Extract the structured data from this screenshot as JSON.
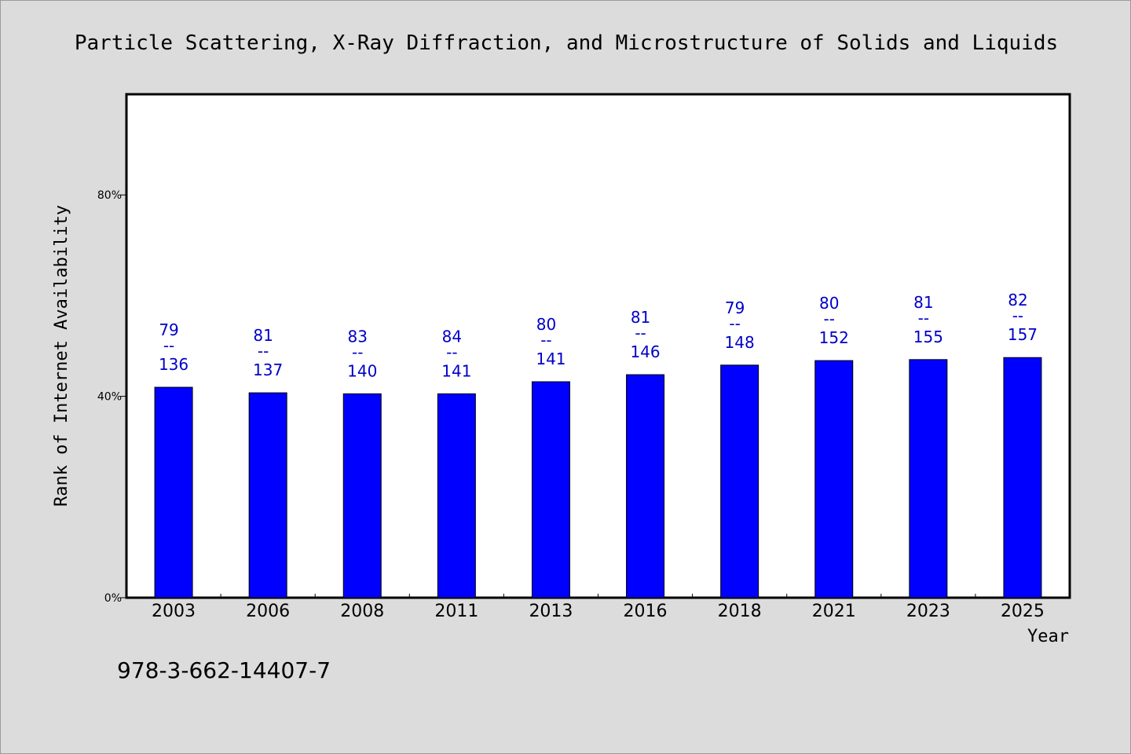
{
  "chart_data": {
    "type": "bar",
    "title": "Particle Scattering, X-Ray Diffraction, and Microstructure of Solids and Liquids",
    "xlabel": "Year",
    "ylabel": "Rank of Internet Availability",
    "categories": [
      "2003",
      "2006",
      "2008",
      "2011",
      "2013",
      "2016",
      "2018",
      "2021",
      "2023",
      "2025"
    ],
    "values": [
      41.8,
      40.7,
      40.5,
      40.5,
      42.9,
      44.3,
      46.2,
      47.1,
      47.3,
      47.7
    ],
    "labels_top": [
      "79",
      "81",
      "83",
      "84",
      "80",
      "81",
      "79",
      "80",
      "81",
      "82"
    ],
    "labels_bottom": [
      "136",
      "137",
      "140",
      "141",
      "141",
      "146",
      "148",
      "152",
      "155",
      "157"
    ],
    "label_separator": "--",
    "ylim": [
      0,
      100
    ],
    "yticks": [
      0,
      40,
      80
    ],
    "ytick_labels": [
      "0%",
      "40%",
      "80%"
    ],
    "grid": false,
    "bar_color": "#0000ff",
    "label_color": "#0000c8",
    "background_color": "#dcdcdc",
    "plot_background_color": "#ffffff",
    "footnote": "978-3-662-14407-7"
  }
}
